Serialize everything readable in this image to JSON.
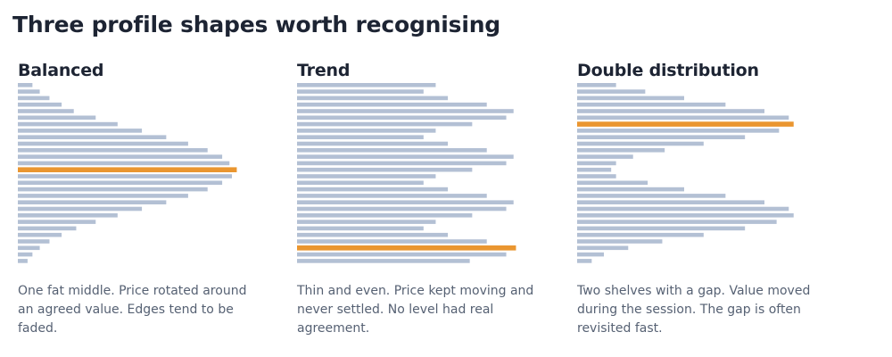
{
  "page": {
    "title": "Three profile shapes worth recognising"
  },
  "colors": {
    "bar": "#b3c0d4",
    "highlight": "#ea9630",
    "title_text": "#1d2433",
    "body_text": "#566173"
  },
  "chart_data": [
    {
      "type": "bar",
      "orientation": "horizontal",
      "title": "Balanced",
      "description": "One fat middle. Price rotated around an agreed value. Edges tend to be faded.",
      "values": [
        3,
        4.5,
        6.5,
        9,
        11.5,
        16,
        20.5,
        25.5,
        30.5,
        35,
        39,
        42,
        43.5,
        45,
        44,
        42,
        39,
        35,
        30.5,
        25.5,
        20.5,
        16,
        12,
        9,
        6.5,
        4.5,
        3,
        2
      ],
      "highlight_index": 13,
      "xlim": [
        0,
        55
      ]
    },
    {
      "type": "bar",
      "orientation": "horizontal",
      "title": "Trend",
      "description": "Thin and even. Price kept moving and never settled. No level had real agreement.",
      "values": [
        28.5,
        26,
        31,
        39,
        44.5,
        43,
        36,
        28.5,
        26,
        31,
        39,
        44.5,
        43,
        36,
        28.5,
        26,
        31,
        39,
        44.5,
        43,
        36,
        28.5,
        26,
        31,
        39,
        45,
        43,
        35.5
      ],
      "highlight_index": 25,
      "xlim": [
        0,
        55
      ]
    },
    {
      "type": "bar",
      "orientation": "horizontal",
      "title": "Double distribution",
      "description": "Two shelves with a gap. Value moved during the session. The gap is often revisited fast.",
      "values": [
        8,
        14,
        22,
        30.5,
        38.5,
        43.5,
        44.5,
        41.5,
        34.5,
        26,
        18,
        11.5,
        8,
        7,
        8,
        14.5,
        22,
        30.5,
        38.5,
        43.5,
        44.5,
        41,
        34.5,
        26,
        17.5,
        10.5,
        5.5,
        3
      ],
      "highlight_index": 6,
      "xlim": [
        0,
        55
      ]
    }
  ]
}
